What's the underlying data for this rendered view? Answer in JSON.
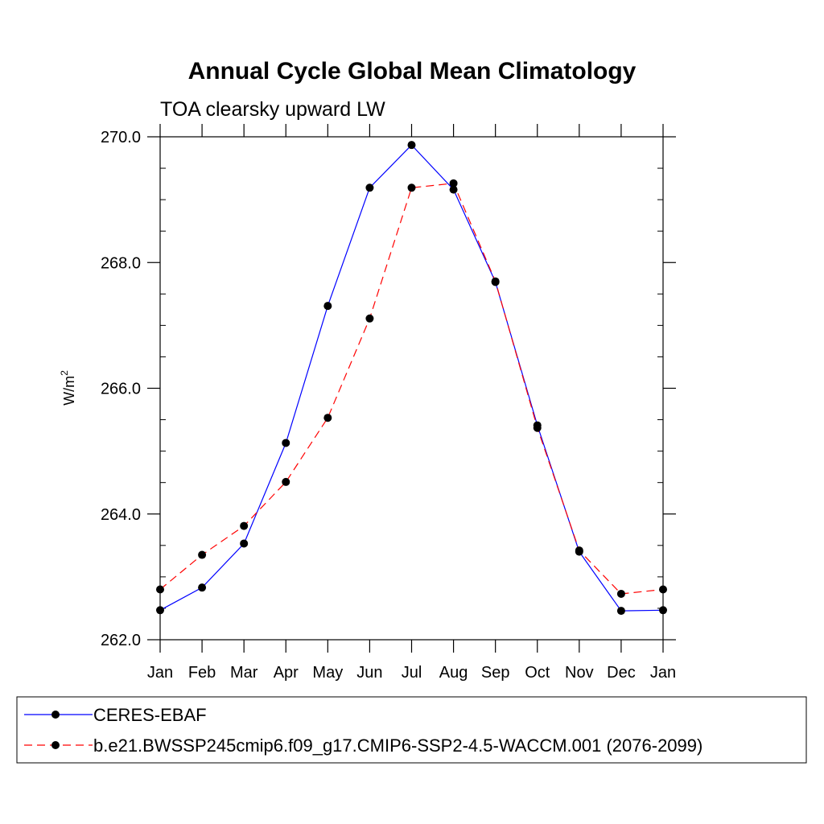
{
  "chart_data": {
    "type": "line",
    "title": "Annual Cycle Global Mean Climatology",
    "subtitle": "TOA clearsky upward LW",
    "ylabel": "W/m",
    "ylabel_superscript": "2",
    "xlabel": "",
    "ylim": [
      262.0,
      270.0
    ],
    "y_major_ticks": [
      262.0,
      264.0,
      266.0,
      268.0,
      270.0
    ],
    "y_tick_labels": [
      "262.0",
      "264.0",
      "266.0",
      "268.0",
      "270.0"
    ],
    "y_minor_step": 0.5,
    "categories": [
      "Jan",
      "Feb",
      "Mar",
      "Apr",
      "May",
      "Jun",
      "Jul",
      "Aug",
      "Sep",
      "Oct",
      "Nov",
      "Dec",
      "Jan"
    ],
    "grid": false,
    "legend_position": "bottom",
    "series": [
      {
        "name": "CERES-EBAF",
        "color": "#0000ff",
        "dash": "solid",
        "marker": "filled-circle",
        "values": [
          262.47,
          262.83,
          263.53,
          265.13,
          267.31,
          269.19,
          269.87,
          269.16,
          267.69,
          265.41,
          263.4,
          262.46,
          262.47
        ]
      },
      {
        "name": "b.e21.BWSSP245cmip6.f09_g17.CMIP6-SSP2-4.5-WACCM.001 (2076-2099)",
        "color": "#ff0000",
        "dash": "dashed",
        "marker": "filled-circle",
        "values": [
          262.8,
          263.35,
          263.81,
          264.51,
          265.53,
          267.11,
          269.19,
          269.26,
          267.7,
          265.37,
          263.42,
          262.73,
          262.8
        ]
      }
    ]
  }
}
